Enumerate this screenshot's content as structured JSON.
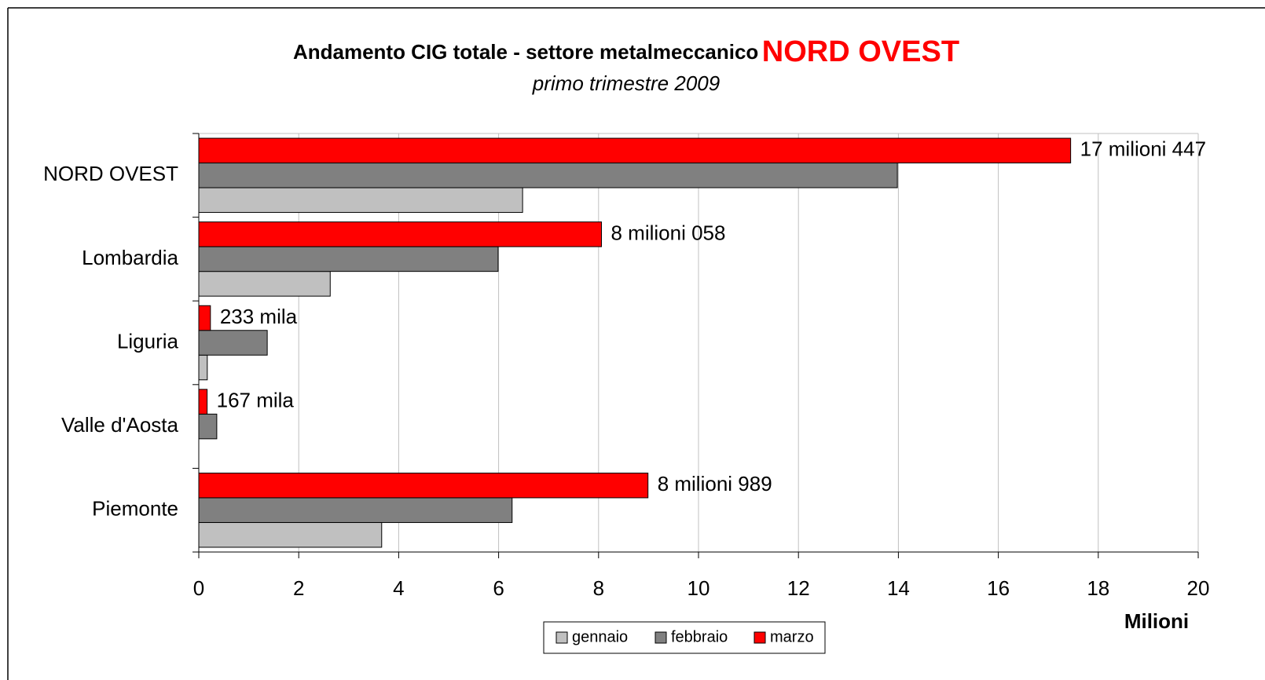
{
  "chart_data": {
    "type": "bar",
    "orientation": "horizontal",
    "title": "Andamento CIG totale - settore metalmeccanico",
    "title_highlight": "NORD OVEST",
    "subtitle": "primo trimestre 2009",
    "x_label": "Milioni",
    "categories": [
      "NORD OVEST",
      "Lombardia",
      "Liguria",
      "Valle d'Aosta",
      "Piemonte"
    ],
    "series": [
      {
        "name": "gennaio",
        "color": "#c0c0c0",
        "values": [
          6.48,
          2.63,
          0.17,
          0,
          3.66
        ]
      },
      {
        "name": "febbraio",
        "color": "#808080",
        "values": [
          13.98,
          5.99,
          1.37,
          0.36,
          6.27
        ]
      },
      {
        "name": "marzo",
        "color": "#ff0000",
        "values": [
          17.447,
          8.058,
          0.233,
          0.167,
          8.989
        ],
        "value_labels": [
          "17 milioni 447",
          "8 milioni 058",
          "233 mila",
          "167 mila",
          "8 milioni 989"
        ]
      }
    ],
    "xlim": [
      0,
      20
    ],
    "xticks": [
      0,
      2,
      4,
      6,
      8,
      10,
      12,
      14,
      16,
      18,
      20
    ],
    "grid": true,
    "legend": "bottom"
  }
}
